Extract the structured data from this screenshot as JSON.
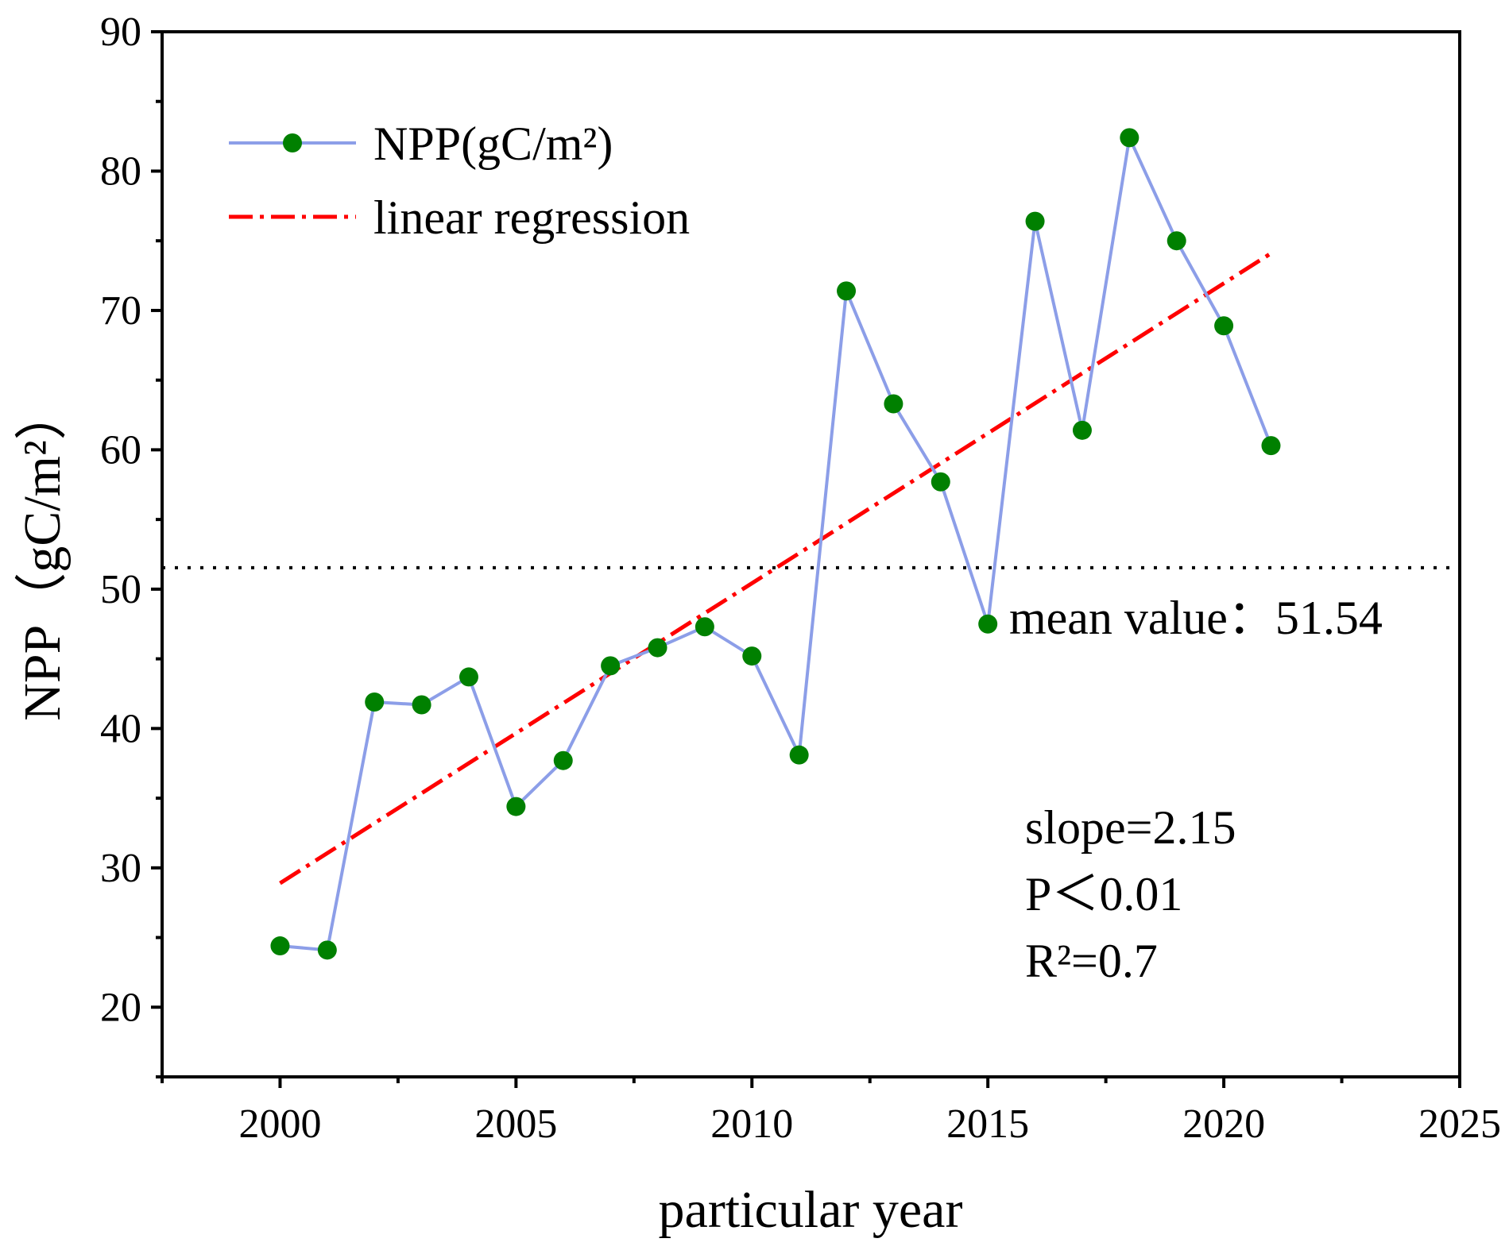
{
  "chart_data": {
    "type": "line",
    "xlabel": "particular year",
    "ylabel": "NPP（gC/m²）",
    "xlim": [
      1997.5,
      2025
    ],
    "ylim": [
      15,
      90
    ],
    "xticks": [
      2000,
      2005,
      2010,
      2015,
      2020,
      2025
    ],
    "yticks": [
      20,
      30,
      40,
      50,
      60,
      70,
      80,
      90
    ],
    "x": [
      2000,
      2001,
      2002,
      2003,
      2004,
      2005,
      2006,
      2007,
      2008,
      2009,
      2010,
      2011,
      2012,
      2013,
      2014,
      2015,
      2016,
      2017,
      2018,
      2019,
      2020,
      2021
    ],
    "series": [
      {
        "name": "NPP(gC/m²)",
        "values": [
          24.4,
          24.1,
          41.9,
          41.7,
          43.7,
          34.4,
          37.7,
          44.5,
          45.8,
          47.3,
          45.2,
          38.1,
          71.4,
          63.3,
          57.7,
          47.5,
          76.4,
          61.4,
          82.4,
          75.0,
          68.9,
          60.3
        ],
        "line_color": "#8c9ee8",
        "marker_color": "#008000"
      }
    ],
    "regression": {
      "name": "linear regression",
      "x": [
        2000,
        2021
      ],
      "y": [
        28.9,
        74.1
      ],
      "color": "#ff0000"
    },
    "mean": {
      "value": 51.54,
      "label": "mean value：51.54"
    },
    "stats": [
      "slope=2.15",
      "P＜0.01",
      "R²=0.7"
    ]
  }
}
